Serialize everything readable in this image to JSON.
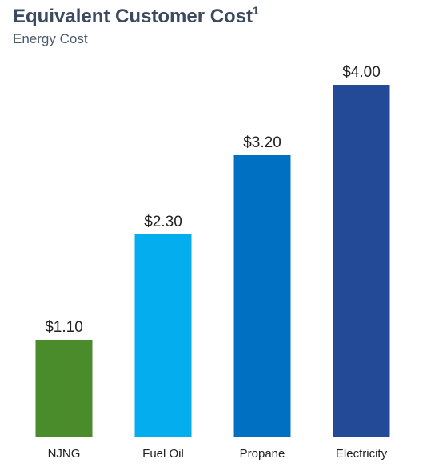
{
  "header": {
    "title": "Equivalent Customer Cost",
    "footnote_marker": "1",
    "subtitle": "Energy Cost"
  },
  "chart_data": {
    "type": "bar",
    "title": "Equivalent Customer Cost",
    "subtitle": "Energy Cost",
    "categories": [
      "NJNG",
      "Fuel Oil",
      "Propane",
      "Electricity"
    ],
    "values": [
      1.1,
      2.3,
      3.2,
      4.0
    ],
    "value_labels": [
      "$1.10",
      "$2.30",
      "$3.20",
      "$4.00"
    ],
    "bar_colors": [
      "#4a8c2c",
      "#03adee",
      "#0071c2",
      "#234a97"
    ],
    "ylim": [
      0,
      4
    ],
    "grid": false,
    "xlabel": "",
    "ylabel": ""
  },
  "colors": {
    "title": "#3b4a5e",
    "label_text": "#222222",
    "axis_line": "#b5b5b5"
  }
}
